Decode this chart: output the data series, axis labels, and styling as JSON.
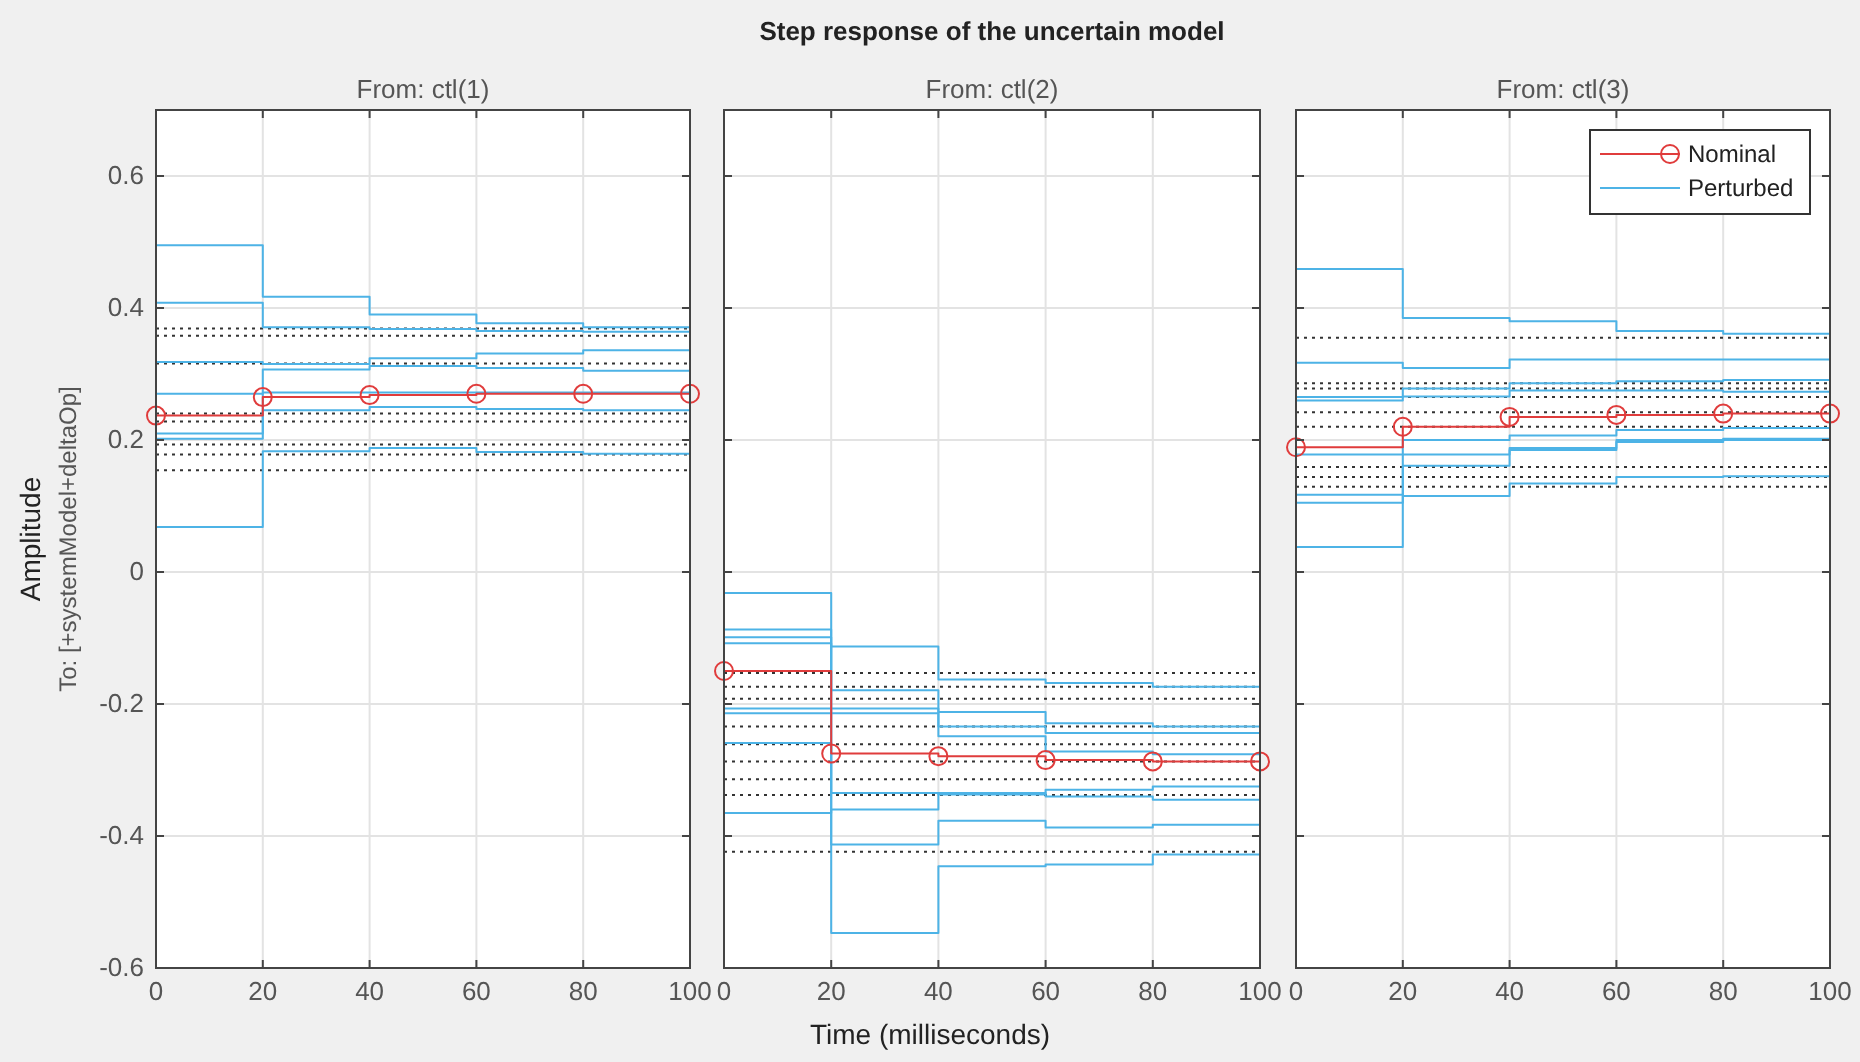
{
  "chart_data": [
    {
      "type": "step",
      "subtitle": "From: ctl(1)",
      "ylabel": "Amplitude",
      "annotations": [
        "To: [+systemModel+deltaOp]"
      ],
      "x": [
        0,
        20,
        40,
        60,
        80,
        100
      ],
      "xlim": [
        0,
        100
      ],
      "xticks": [
        0,
        20,
        40,
        60,
        80,
        100
      ],
      "ylim": [
        -0.6,
        0.7
      ],
      "yticks": [
        -0.6,
        -0.4,
        -0.2,
        0,
        0.2,
        0.4,
        0.6
      ],
      "grid": true,
      "series": [
        {
          "color": "#4db3e6",
          "values": [
            0.495,
            0.417,
            0.39,
            0.377,
            0.371,
            0.371
          ]
        },
        {
          "color": "#4db3e6",
          "values": [
            0.408,
            0.371,
            0.368,
            0.365,
            0.364,
            0.364
          ]
        },
        {
          "color": "#4db3e6",
          "values": [
            0.318,
            0.315,
            0.324,
            0.331,
            0.336,
            0.336
          ]
        },
        {
          "color": "#4db3e6",
          "values": [
            0.202,
            0.307,
            0.312,
            0.309,
            0.305,
            0.305
          ]
        },
        {
          "color": "#4db3e6",
          "values": [
            0.068,
            0.183,
            0.188,
            0.182,
            0.179,
            0.179
          ]
        },
        {
          "color": "#4db3e6",
          "values": [
            0.27,
            0.272,
            0.272,
            0.272,
            0.272,
            0.272
          ]
        },
        {
          "color": "#4db3e6",
          "values": [
            0.21,
            0.245,
            0.25,
            0.247,
            0.245,
            0.245
          ]
        },
        {
          "color": "#e03c3c",
          "marker": "circle",
          "values": [
            0.237,
            0.265,
            0.268,
            0.27,
            0.27,
            0.27
          ]
        }
      ],
      "ref_lines": [
        {
          "axis": "y",
          "value": 0.369,
          "color": "#333333",
          "line_style": "dotted"
        },
        {
          "axis": "y",
          "value": 0.358,
          "color": "#333333",
          "line_style": "dotted"
        },
        {
          "axis": "y",
          "value": 0.316,
          "color": "#333333",
          "line_style": "dotted"
        },
        {
          "axis": "y",
          "value": 0.24,
          "color": "#333333",
          "line_style": "dotted"
        },
        {
          "axis": "y",
          "value": 0.228,
          "color": "#333333",
          "line_style": "dotted"
        },
        {
          "axis": "y",
          "value": 0.193,
          "color": "#333333",
          "line_style": "dotted"
        },
        {
          "axis": "y",
          "value": 0.178,
          "color": "#333333",
          "line_style": "dotted"
        },
        {
          "axis": "y",
          "value": 0.154,
          "color": "#333333",
          "line_style": "dotted"
        }
      ]
    },
    {
      "type": "step",
      "title": "Step response of the uncertain model",
      "subtitle": "From: ctl(2)",
      "xlabel": "Time (milliseconds)",
      "tick_labels": "x",
      "x": [
        0,
        20,
        40,
        60,
        80,
        100
      ],
      "xlim": [
        0,
        100
      ],
      "xticks": [
        0,
        20,
        40,
        60,
        80,
        100
      ],
      "ylim": [
        -0.6,
        0.7
      ],
      "yticks": [
        -0.6,
        -0.4,
        -0.2,
        0,
        0.2,
        0.4,
        0.6
      ],
      "grid": true,
      "series": [
        {
          "color": "#4db3e6",
          "values": [
            -0.032,
            -0.113,
            -0.163,
            -0.168,
            -0.174,
            -0.174
          ]
        },
        {
          "color": "#4db3e6",
          "values": [
            -0.087,
            -0.179,
            -0.212,
            -0.229,
            -0.234,
            -0.234
          ]
        },
        {
          "color": "#4db3e6",
          "values": [
            -0.099,
            -0.207,
            -0.234,
            -0.244,
            -0.244,
            -0.244
          ]
        },
        {
          "color": "#4db3e6",
          "values": [
            -0.108,
            -0.214,
            -0.249,
            -0.272,
            -0.276,
            -0.276
          ]
        },
        {
          "color": "#4db3e6",
          "values": [
            -0.207,
            -0.335,
            -0.337,
            -0.33,
            -0.325,
            -0.325
          ]
        },
        {
          "color": "#4db3e6",
          "values": [
            -0.365,
            -0.36,
            -0.335,
            -0.34,
            -0.345,
            -0.345
          ]
        },
        {
          "color": "#4db3e6",
          "values": [
            -0.214,
            -0.547,
            -0.446,
            -0.443,
            -0.428,
            -0.428
          ]
        },
        {
          "color": "#4db3e6",
          "values": [
            -0.259,
            -0.413,
            -0.377,
            -0.387,
            -0.383,
            -0.383
          ]
        },
        {
          "color": "#e03c3c",
          "marker": "circle",
          "values": [
            -0.15,
            -0.275,
            -0.279,
            -0.285,
            -0.287,
            -0.287
          ]
        }
      ],
      "ref_lines": [
        {
          "axis": "y",
          "value": -0.153,
          "color": "#333333",
          "line_style": "dotted"
        },
        {
          "axis": "y",
          "value": -0.174,
          "color": "#333333",
          "line_style": "dotted"
        },
        {
          "axis": "y",
          "value": -0.192,
          "color": "#333333",
          "line_style": "dotted"
        },
        {
          "axis": "y",
          "value": -0.234,
          "color": "#333333",
          "line_style": "dotted"
        },
        {
          "axis": "y",
          "value": -0.261,
          "color": "#333333",
          "line_style": "dotted"
        },
        {
          "axis": "y",
          "value": -0.287,
          "color": "#333333",
          "line_style": "dotted"
        },
        {
          "axis": "y",
          "value": -0.314,
          "color": "#333333",
          "line_style": "dotted"
        },
        {
          "axis": "y",
          "value": -0.338,
          "color": "#333333",
          "line_style": "dotted"
        },
        {
          "axis": "y",
          "value": -0.424,
          "color": "#333333",
          "line_style": "dotted"
        }
      ]
    },
    {
      "type": "step",
      "subtitle": "From: ctl(3)",
      "tick_labels": "x",
      "legend": "top right",
      "x": [
        0,
        20,
        40,
        60,
        80,
        100
      ],
      "xlim": [
        0,
        100
      ],
      "xticks": [
        0,
        20,
        40,
        60,
        80,
        100
      ],
      "ylim": [
        -0.6,
        0.7
      ],
      "yticks": [
        -0.6,
        -0.4,
        -0.2,
        0,
        0.2,
        0.4,
        0.6
      ],
      "grid": true,
      "series": [
        {
          "name": "Nominal",
          "color": "#e03c3c",
          "marker": "circle",
          "values": [
            0.189,
            0.22,
            0.235,
            0.238,
            0.24,
            0.24
          ]
        },
        {
          "name": "Perturbed",
          "color": "#4db3e6",
          "values": [
            0.459,
            0.385,
            0.38,
            0.365,
            0.361,
            0.361
          ]
        },
        {
          "color": "#4db3e6",
          "values": [
            0.317,
            0.309,
            0.322,
            0.322,
            0.322,
            0.322
          ]
        },
        {
          "color": "#4db3e6",
          "values": [
            0.265,
            0.278,
            0.286,
            0.289,
            0.291,
            0.291
          ]
        },
        {
          "color": "#4db3e6",
          "values": [
            0.26,
            0.266,
            0.275,
            0.275,
            0.273,
            0.273
          ]
        },
        {
          "color": "#4db3e6",
          "values": [
            0.178,
            0.2,
            0.207,
            0.215,
            0.218,
            0.218
          ]
        },
        {
          "color": "#4db3e6",
          "values": [
            0.117,
            0.161,
            0.185,
            0.2,
            0.202,
            0.202
          ]
        },
        {
          "color": "#4db3e6",
          "values": [
            0.105,
            0.115,
            0.134,
            0.144,
            0.145,
            0.145
          ]
        },
        {
          "color": "#4db3e6",
          "values": [
            0.038,
            0.178,
            0.188,
            0.197,
            0.2,
            0.2
          ]
        }
      ],
      "ref_lines": [
        {
          "axis": "y",
          "value": 0.355,
          "color": "#333333",
          "line_style": "dotted"
        },
        {
          "axis": "y",
          "value": 0.286,
          "color": "#333333",
          "line_style": "dotted"
        },
        {
          "axis": "y",
          "value": 0.278,
          "color": "#333333",
          "line_style": "dotted"
        },
        {
          "axis": "y",
          "value": 0.265,
          "color": "#333333",
          "line_style": "dotted"
        },
        {
          "axis": "y",
          "value": 0.242,
          "color": "#333333",
          "line_style": "dotted"
        },
        {
          "axis": "y",
          "value": 0.22,
          "color": "#333333",
          "line_style": "dotted"
        },
        {
          "axis": "y",
          "value": 0.159,
          "color": "#333333",
          "line_style": "dotted"
        },
        {
          "axis": "y",
          "value": 0.144,
          "color": "#333333",
          "line_style": "dotted"
        },
        {
          "axis": "y",
          "value": 0.129,
          "color": "#333333",
          "line_style": "dotted"
        }
      ]
    }
  ]
}
